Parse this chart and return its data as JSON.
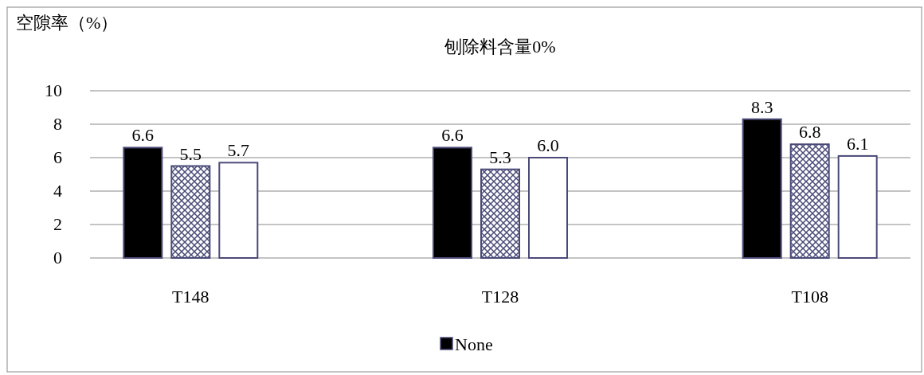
{
  "chart_data": {
    "type": "bar",
    "title": "刨除料含量0%",
    "ylabel": "空隙率（%）",
    "categories": [
      "T148",
      "T128",
      "T108"
    ],
    "series": [
      {
        "name": "None",
        "color": "#000000",
        "values": [
          6.6,
          6.6,
          8.3
        ],
        "value_labels": [
          "6.6",
          "6.6",
          "8.3"
        ]
      },
      {
        "color": "#4a4a78",
        "values": [
          5.5,
          5.3,
          6.8
        ],
        "value_labels": [
          "5.5",
          "5.3",
          "6.8"
        ]
      },
      {
        "color": "#ffffff",
        "values": [
          5.7,
          6.0,
          6.1
        ],
        "value_labels": [
          "5.7",
          "6.0",
          "6.1"
        ]
      }
    ],
    "ylim": [
      0,
      10
    ],
    "yticks": [
      0,
      2,
      4,
      6,
      8,
      10
    ],
    "grid": "y",
    "legend": "bottom"
  }
}
